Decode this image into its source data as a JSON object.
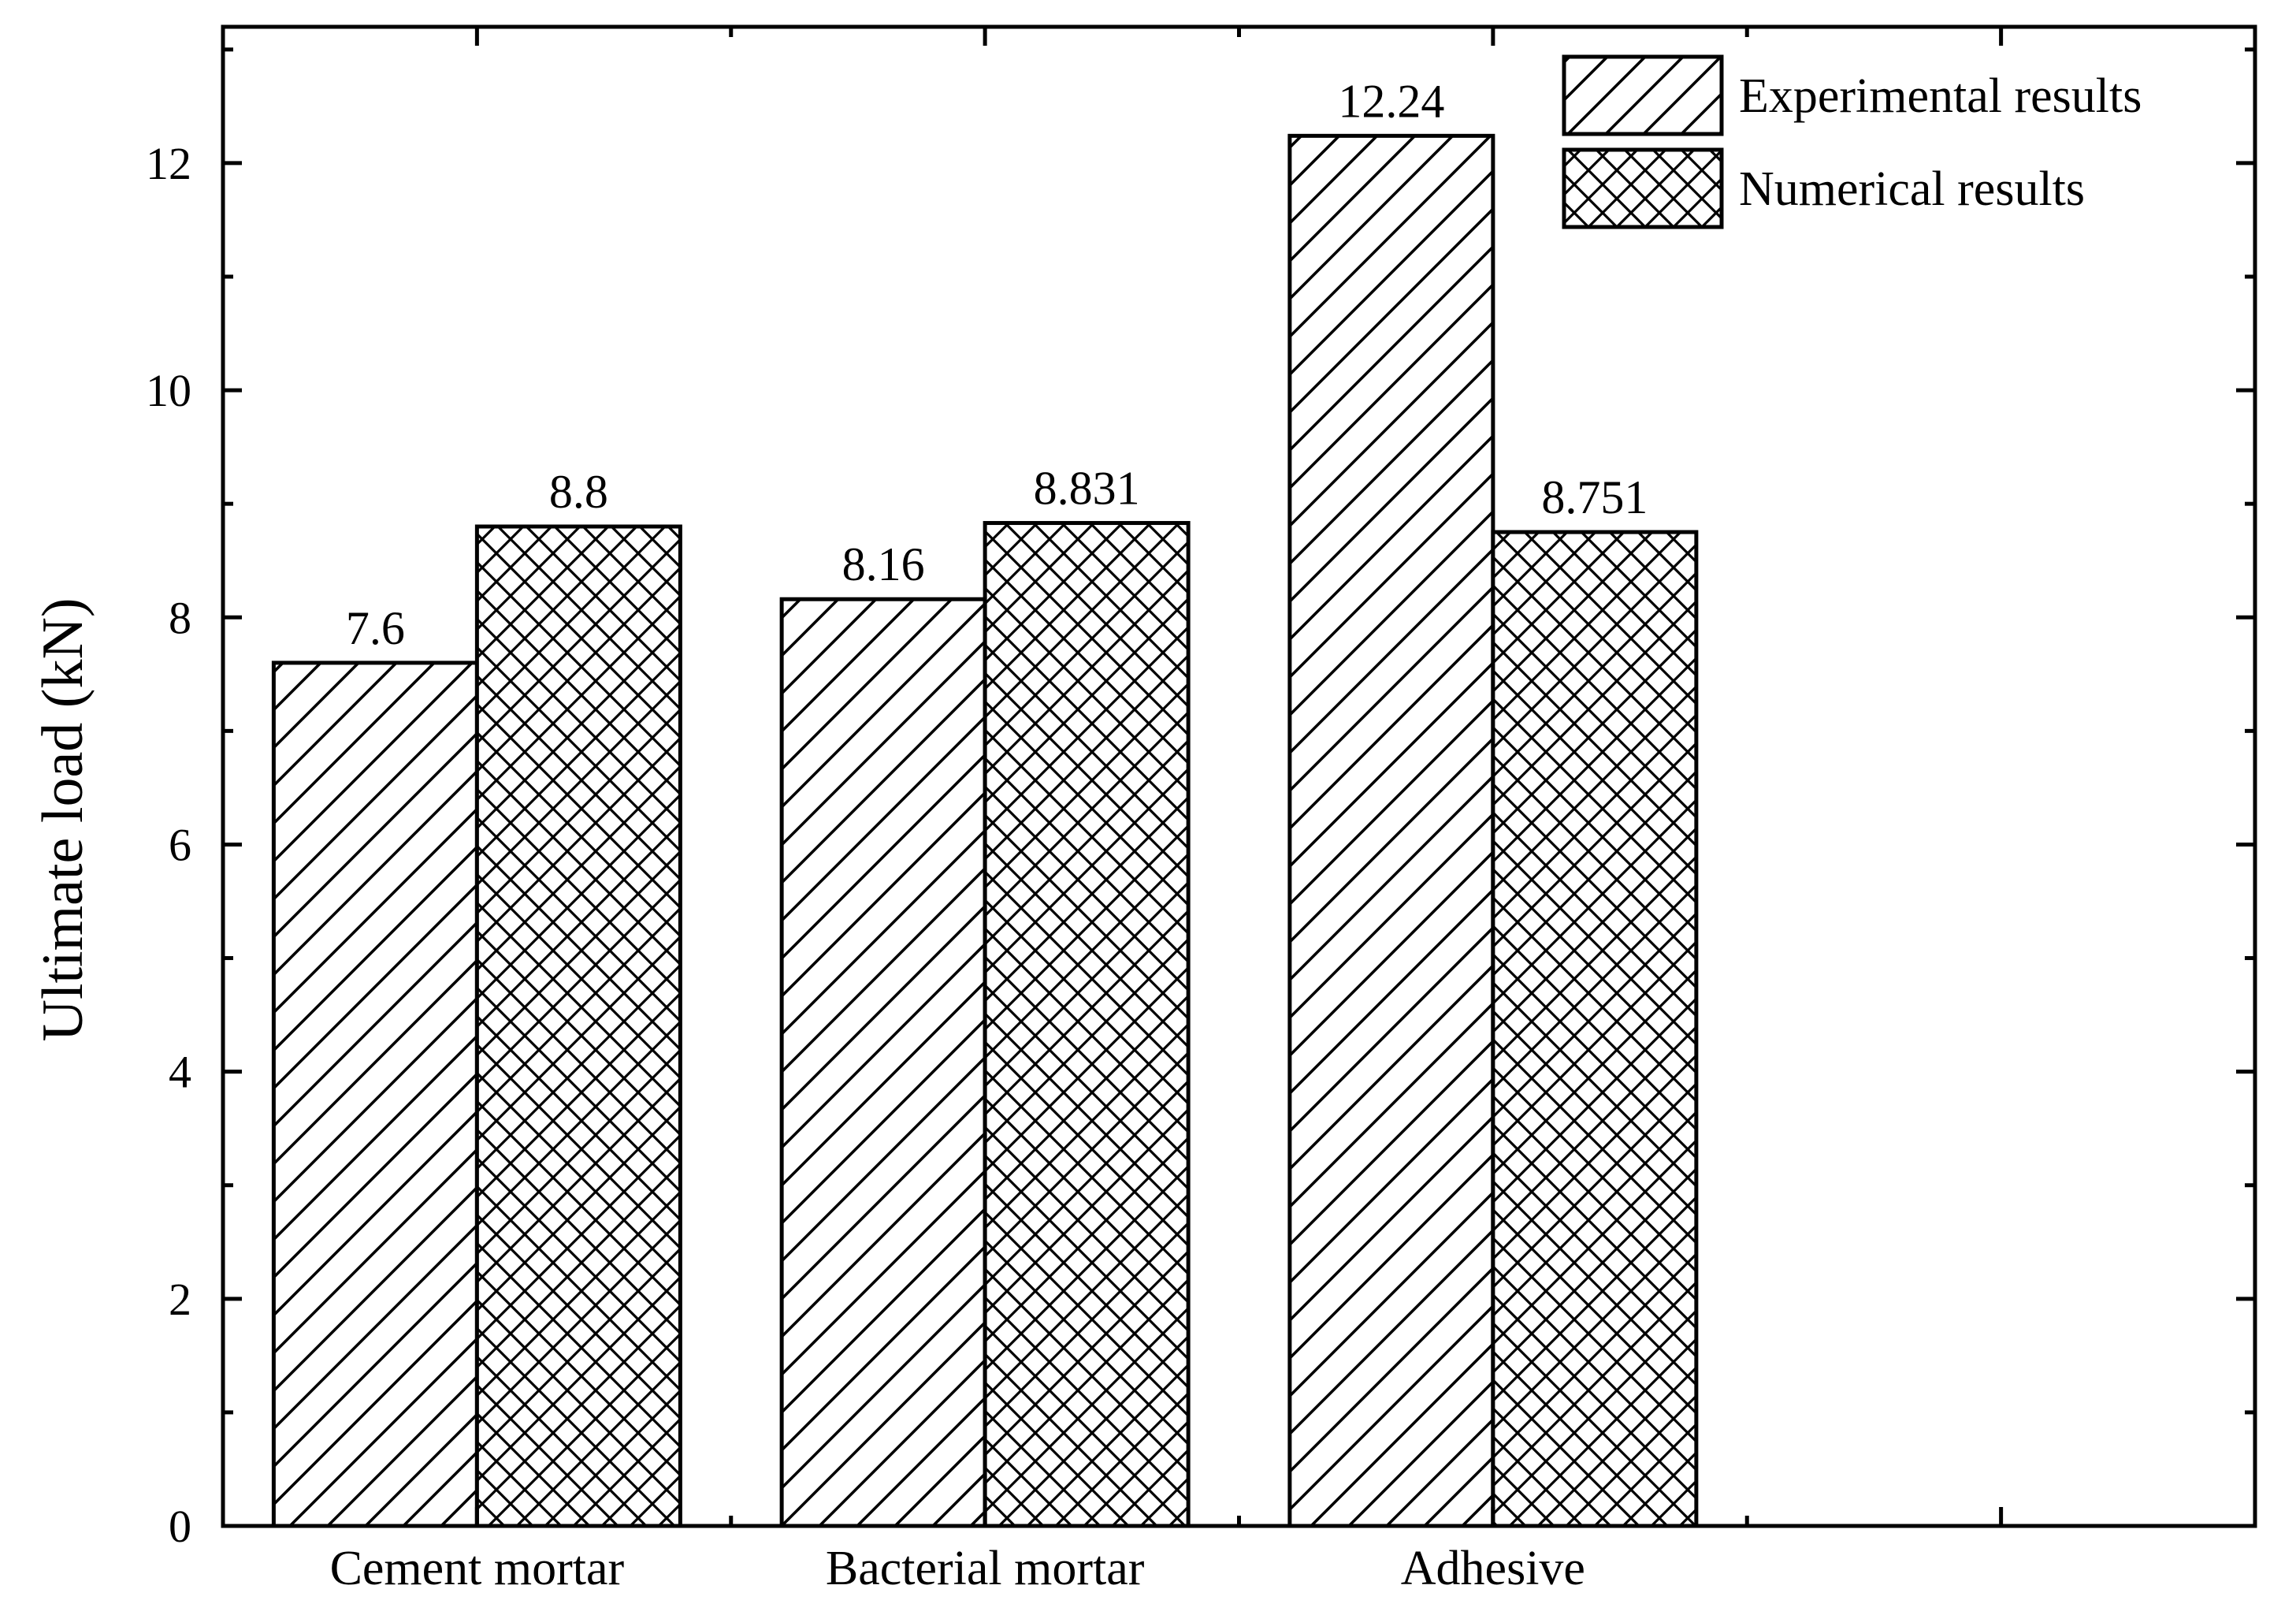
{
  "chart_data": {
    "type": "bar",
    "title": "",
    "xlabel": "",
    "ylabel": "Ultimate load (kN)",
    "categories": [
      "Cement mortar",
      "Bacterial mortar",
      "Adhesive"
    ],
    "series": [
      {
        "name": "Experimental results",
        "pattern": "diagonal-hatch",
        "values": [
          7.6,
          8.16,
          12.24
        ]
      },
      {
        "name": "Numerical results",
        "pattern": "cross-hatch",
        "values": [
          8.8,
          8.831,
          8.751
        ]
      }
    ],
    "data_labels": [
      [
        "7.6",
        "8.16",
        "12.24"
      ],
      [
        "8.8",
        "8.831",
        "8.751"
      ]
    ],
    "ylim": [
      0,
      13.2
    ],
    "xlim_slots": 4,
    "yticks": [
      0,
      2,
      4,
      6,
      8,
      10,
      12
    ],
    "ytick_labels": [
      "0",
      "2",
      "4",
      "6",
      "8",
      "10",
      "12"
    ],
    "minor_ytick_step": 1,
    "grid": false,
    "legend_position": "top-right",
    "colors": {
      "bar_fill": "#ffffff",
      "stroke": "#000000",
      "background": "#ffffff"
    }
  }
}
